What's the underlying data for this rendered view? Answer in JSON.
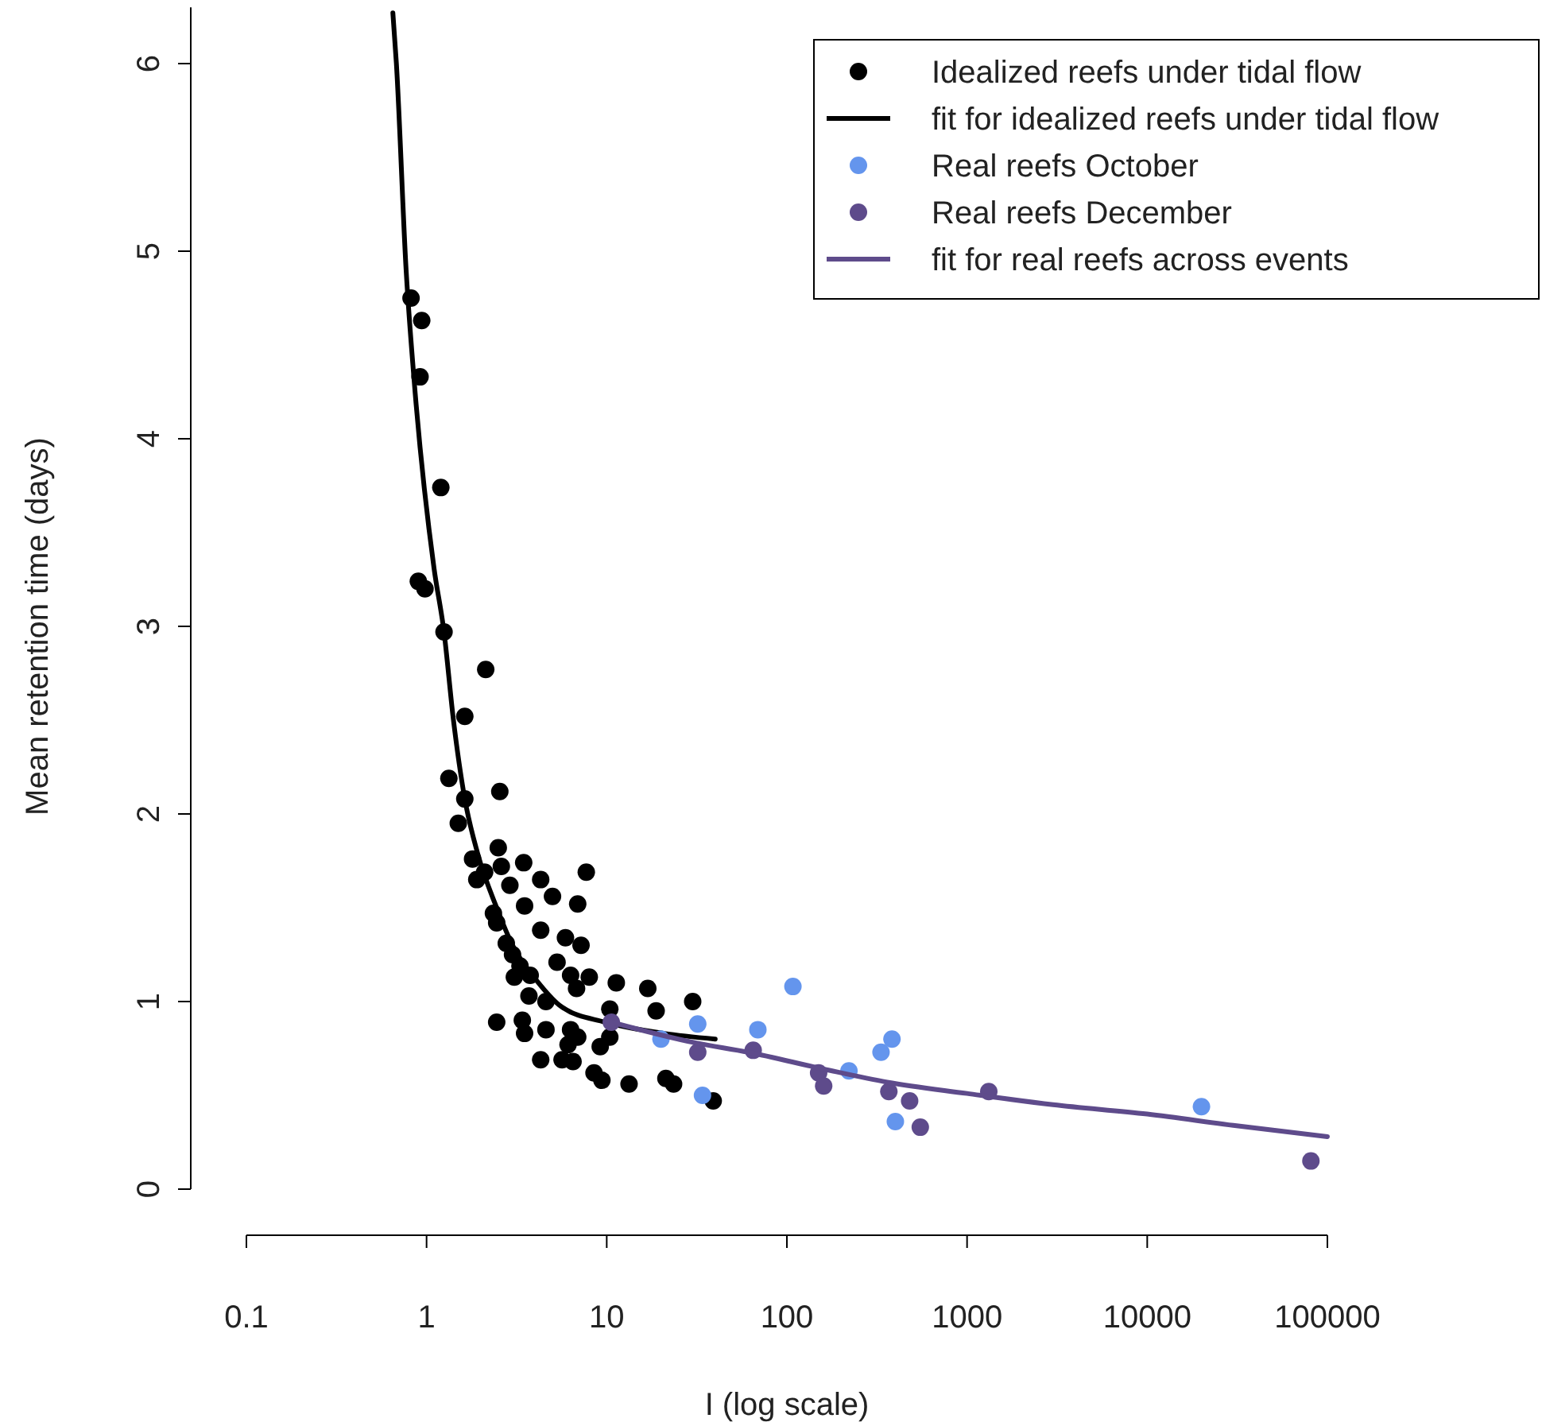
{
  "chart_data": {
    "type": "scatter",
    "xlabel": "I (log scale)",
    "ylabel": "Mean retention time (days)",
    "log": "x",
    "xlim": [
      0.1,
      100000
    ],
    "xticks": [
      0.1,
      1,
      10,
      100,
      1000,
      10000,
      100000
    ],
    "ylim": [
      0,
      6.3
    ],
    "yticks": [
      0,
      1,
      2,
      3,
      4,
      5,
      6
    ],
    "grid": false,
    "legend": "top right",
    "series": [
      {
        "name": "Idealized reefs under tidal flow",
        "marker": "circle",
        "color": "#000000",
        "x": [
          0.82,
          0.94,
          0.92,
          1.2,
          0.9,
          0.98,
          1.25,
          2.13,
          1.63,
          1.33,
          2.55,
          1.63,
          1.5,
          2.5,
          1.8,
          2.1,
          2.6,
          1.9,
          2.9,
          3.46,
          7.7,
          4.3,
          5.0,
          3.5,
          6.9,
          2.35,
          2.45,
          4.3,
          5.9,
          7.2,
          2.77,
          3.0,
          3.3,
          5.3,
          3.07,
          3.76,
          6.3,
          8.0,
          6.8,
          11.3,
          16.9,
          30,
          3.7,
          4.6,
          10.4,
          18.8,
          2.45,
          3.4,
          3.5,
          4.6,
          6.3,
          6.9,
          9.2,
          10.4,
          6.1,
          4.3,
          5.65,
          6.5,
          8.5,
          9.4,
          13.3,
          21.3,
          23.5,
          39
        ],
        "values": [
          4.75,
          4.63,
          4.33,
          3.74,
          3.24,
          3.2,
          2.97,
          2.77,
          2.52,
          2.19,
          2.12,
          2.08,
          1.95,
          1.82,
          1.76,
          1.69,
          1.72,
          1.65,
          1.62,
          1.74,
          1.69,
          1.65,
          1.56,
          1.51,
          1.52,
          1.47,
          1.42,
          1.38,
          1.34,
          1.3,
          1.31,
          1.25,
          1.19,
          1.21,
          1.13,
          1.14,
          1.14,
          1.13,
          1.07,
          1.1,
          1.07,
          1.0,
          1.03,
          1.0,
          0.96,
          0.95,
          0.89,
          0.9,
          0.83,
          0.85,
          0.85,
          0.81,
          0.76,
          0.81,
          0.77,
          0.69,
          0.69,
          0.68,
          0.62,
          0.58,
          0.56,
          0.59,
          0.56,
          0.47
        ]
      },
      {
        "name": "fit for idealized reefs under tidal flow",
        "type": "line",
        "color": "#000000",
        "line_style": "solid",
        "x": [
          0.65,
          0.68,
          0.77,
          0.85,
          1.1,
          1.25,
          1.41,
          1.63,
          1.92,
          2.45,
          3.0,
          4.1,
          5.65,
          9.8,
          20.8,
          40
        ],
        "values": [
          6.27,
          6.0,
          4.9,
          4.33,
          3.31,
          2.97,
          2.5,
          2.08,
          1.79,
          1.5,
          1.3,
          1.11,
          0.97,
          0.89,
          0.83,
          0.8
        ]
      },
      {
        "name": "Real reefs October",
        "marker": "circle",
        "color": "#6495ed",
        "x": [
          108,
          32,
          69,
          20,
          383,
          333,
          221,
          34,
          400,
          20000
        ],
        "values": [
          1.08,
          0.88,
          0.85,
          0.8,
          0.8,
          0.73,
          0.63,
          0.5,
          0.36,
          0.44
        ]
      },
      {
        "name": "Real reefs December",
        "marker": "circle",
        "color": "#5e4b8b",
        "x": [
          10.6,
          32,
          65,
          150,
          160,
          368,
          480,
          550,
          1320,
          81000
        ],
        "values": [
          0.89,
          0.73,
          0.74,
          0.62,
          0.55,
          0.52,
          0.47,
          0.33,
          0.52,
          0.15
        ]
      },
      {
        "name": "fit for real reefs across events",
        "type": "line",
        "color": "#5e4b8b",
        "line_style": "solid",
        "x": [
          10.6,
          31,
          61,
          160,
          360,
          1000,
          3000,
          10000,
          30000,
          100000
        ],
        "values": [
          0.89,
          0.78,
          0.73,
          0.64,
          0.57,
          0.51,
          0.45,
          0.4,
          0.34,
          0.28
        ]
      }
    ]
  }
}
